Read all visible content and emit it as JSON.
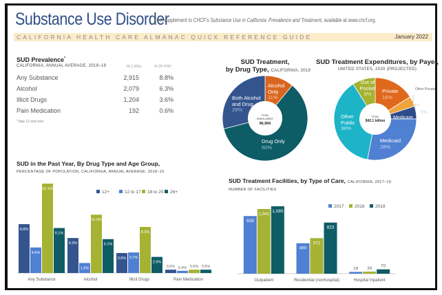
{
  "header": {
    "title": "Substance Use Disorder",
    "supplement_prefix": "A supplement to CHCF's ",
    "supplement_title": "Substance Use in California: Prevalence and Treatment",
    "supplement_suffix": ", available at www.chcf.org.",
    "guide": "CALIFORNIA HEALTH CARE ALMANAC QUICK REFERENCE GUIDE",
    "date": "January 2022"
  },
  "prevalence": {
    "title": "SUD Prevalence",
    "title_mark": "*",
    "subtitle": "CALIFORNIA, ANNUAL AVERAGE, 2018–19",
    "col_number": "IN 1,000s",
    "col_pct": "% OF POP",
    "rows": [
      {
        "label": "Any Substance",
        "number": "2,915",
        "pct": "8.8%"
      },
      {
        "label": "Alcohol",
        "number": "2,079",
        "pct": "6.3%"
      },
      {
        "label": "Illicit Drugs",
        "number": "1,204",
        "pct": "3.6%"
      },
      {
        "label": "Pain Medication",
        "number": "192",
        "pct": "0.6%"
      }
    ],
    "footnote": "* Age 12 and over"
  },
  "chart_data": [
    {
      "type": "pie",
      "title": "SUD Treatment,",
      "title_line2": "by Drug Type,",
      "subtitle": "CALIFORNIA, 2019",
      "center_label_1": "TOTAL",
      "center_label_2": "ENROLLMENT",
      "center_value": "96,960",
      "slices": [
        {
          "label": "Alcohol Only",
          "value": 11,
          "display": "11%",
          "color": "#d9661f"
        },
        {
          "label": "Drug Only",
          "value": 60,
          "display": "60%",
          "color": "#0d5c66"
        },
        {
          "label": "Both Alcohol and Drug",
          "value": 29,
          "display": "29%",
          "color": "#34548e"
        }
      ]
    },
    {
      "type": "pie",
      "title": "SUD Treatment Expenditures, by Payer,",
      "subtitle": "UNITED STATES, 2020 (PROJECTED)",
      "center_label_1": "TOTAL",
      "center_value": "$42.1 billion",
      "slices": [
        {
          "label": "Private",
          "value": 16,
          "display": "16%",
          "color": "#e0681c"
        },
        {
          "label": "Other Private",
          "value": 4,
          "display": "4%",
          "color": "#f0a23c"
        },
        {
          "label": "Medicare",
          "value": 5,
          "display": "5%",
          "color": "#2e4c88"
        },
        {
          "label": "Medicaid",
          "value": 28,
          "display": "28%",
          "color": "#4f80d2"
        },
        {
          "label": "Other Public",
          "value": 38,
          "display": "38%",
          "color": "#1db4c8"
        },
        {
          "label": "Out of Pocket",
          "value": 9,
          "display": "9%",
          "color": "#a5b232"
        }
      ]
    },
    {
      "type": "bar",
      "title": "SUD in the Past Year, By Drug Type and Age Group,",
      "subtitle": "PERCENTAGE OF POPULATION, CALIFORNIA, ANNUAL AVERAGE, 2018–19",
      "categories": [
        "Any Substance",
        "Alcohol",
        "Illicit Drugs",
        "Pain Medication"
      ],
      "series": [
        {
          "name": "12+",
          "values": [
            8.8,
            6.3,
            3.6,
            0.6
          ],
          "labels": [
            "8.8%",
            "6.3%",
            "3.6%",
            "0.6%"
          ],
          "color": "#34548e"
        },
        {
          "name": "12 to 17",
          "values": [
            4.6,
            1.8,
            3.7,
            0.4
          ],
          "labels": [
            "4.6%",
            "1.8%",
            "3.7%",
            "0.4%"
          ],
          "color": "#4f80d2"
        },
        {
          "name": "18 to 25",
          "values": [
            16.1,
            10.5,
            8.3,
            0.6
          ],
          "labels": [
            "16.1%",
            "10.5%",
            "8.3%",
            "0.6%"
          ],
          "color": "#a5b232"
        },
        {
          "name": "26+",
          "values": [
            8.1,
            6.1,
            2.9,
            0.6
          ],
          "labels": [
            "8.1%",
            "6.1%",
            "2.9%",
            "0.6%"
          ],
          "color": "#0d5c66"
        }
      ],
      "legend": "top-right",
      "ylim": [
        0,
        16.1
      ]
    },
    {
      "type": "bar",
      "title": "SUD Treatment Facilities, by Type of Care,",
      "title_suffix": "CALIFORNIA, 2017–19",
      "subtitle": "NUMBER OF FACILITIES",
      "categories": [
        "Outpatient",
        "Residential (nonhospital)",
        "Hospital Inpatient"
      ],
      "series": [
        {
          "name": "2017",
          "values": [
            928,
            490,
            29
          ],
          "labels": [
            "928",
            "490",
            "29"
          ],
          "color": "#4f80d2"
        },
        {
          "name": "2018",
          "values": [
            1041,
            572,
            34
          ],
          "labels": [
            "1,041",
            "572",
            "34"
          ],
          "color": "#a5b232"
        },
        {
          "name": "2019",
          "values": [
            1085,
            823,
            70
          ],
          "labels": [
            "1,085",
            "823",
            "70"
          ],
          "color": "#0d5c66"
        }
      ],
      "legend": "top-right",
      "ylim": [
        0,
        1085
      ]
    }
  ]
}
